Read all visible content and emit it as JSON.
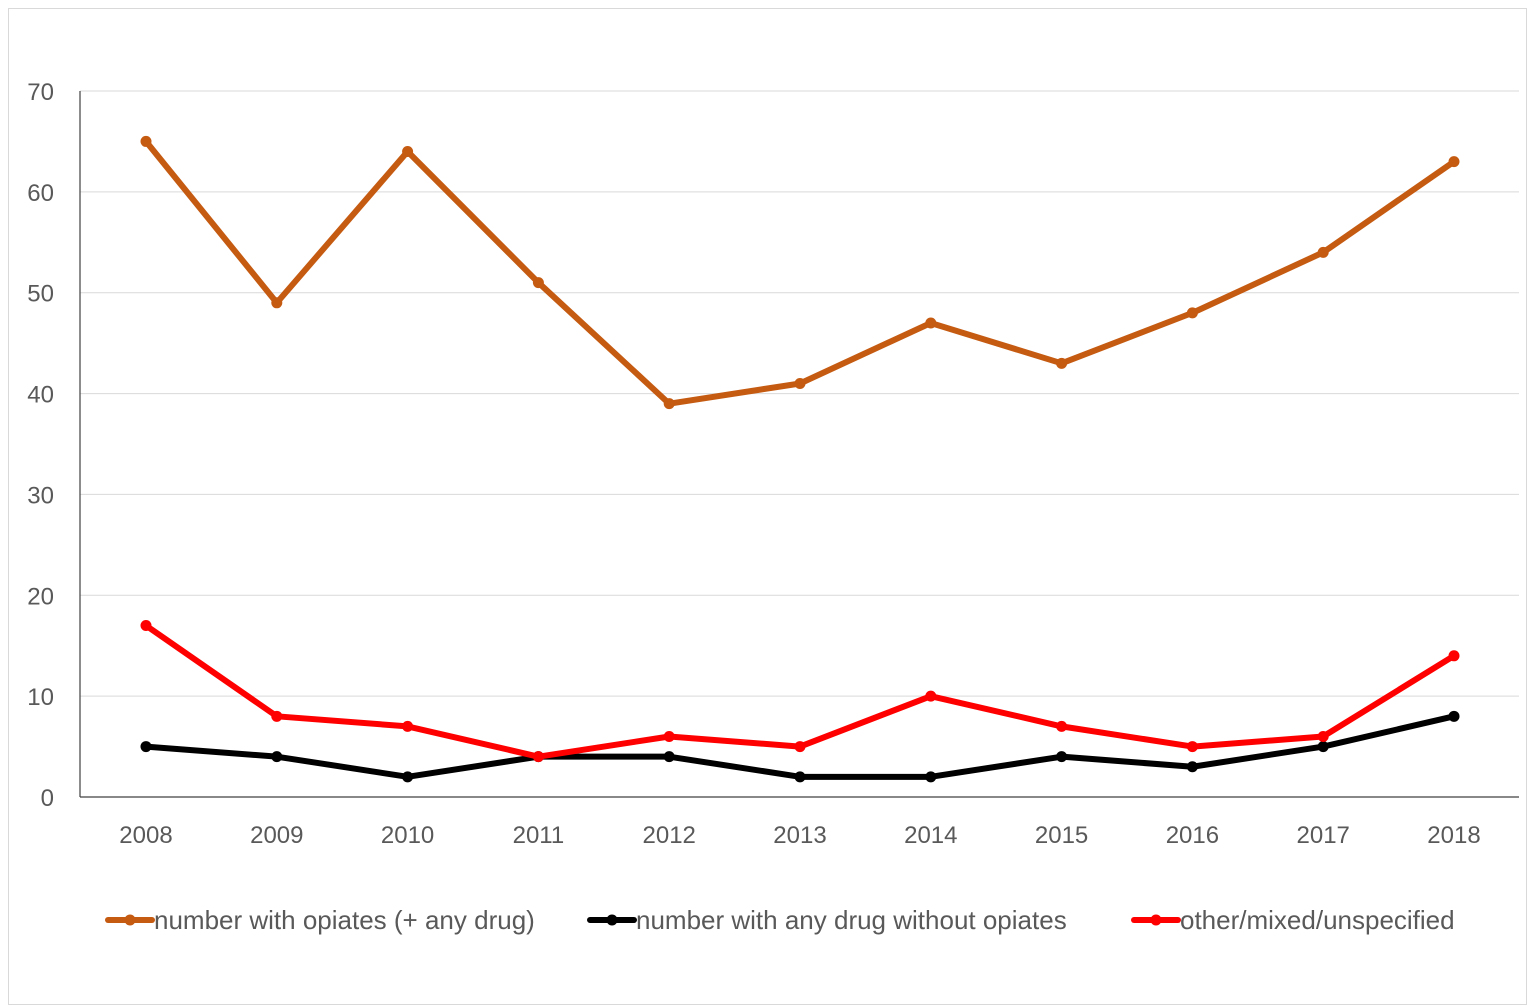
{
  "chart_data": {
    "type": "line",
    "title": "",
    "xlabel": "",
    "ylabel": "",
    "x": [
      "2008",
      "2009",
      "2010",
      "2011",
      "2012",
      "2013",
      "2014",
      "2015",
      "2016",
      "2017",
      "2018"
    ],
    "ylim": [
      0,
      70
    ],
    "yticks": [
      0,
      10,
      20,
      30,
      40,
      50,
      60,
      70
    ],
    "grid": true,
    "legend_position": "bottom",
    "series": [
      {
        "name": "number with opiates (+ any drug)",
        "color": "#c55a11",
        "values": [
          65,
          49,
          64,
          51,
          39,
          41,
          47,
          43,
          48,
          54,
          63
        ]
      },
      {
        "name": "number with any drug without opiates",
        "color": "#000000",
        "values": [
          5,
          4,
          2,
          4,
          4,
          2,
          2,
          4,
          3,
          5,
          8
        ]
      },
      {
        "name": "other/mixed/unspecified",
        "color": "#ff0000",
        "values": [
          17,
          8,
          7,
          4,
          6,
          5,
          10,
          7,
          5,
          6,
          14
        ]
      }
    ]
  }
}
